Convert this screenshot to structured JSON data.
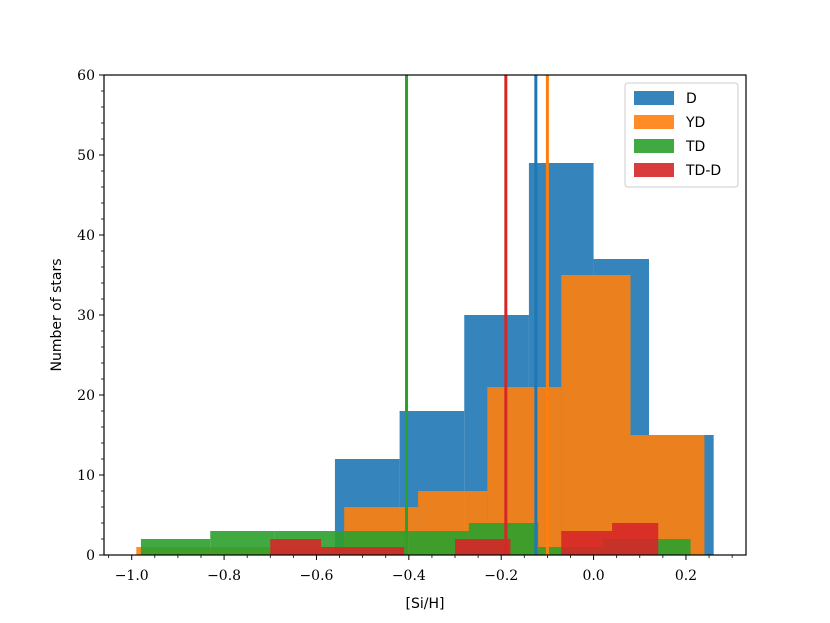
{
  "chart_data": {
    "type": "histogram",
    "xlabel": "[Si/H]",
    "ylabel": "Number of stars",
    "xlim": [
      -1.06,
      0.33
    ],
    "ylim": [
      0,
      60
    ],
    "xticks": [
      -1.0,
      -0.8,
      -0.6,
      -0.4,
      -0.2,
      0.0,
      0.2
    ],
    "xtick_labels": [
      "−1.0",
      "−0.8",
      "−0.6",
      "−0.4",
      "−0.2",
      "0.0",
      "0.2"
    ],
    "yticks": [
      0,
      10,
      20,
      30,
      40,
      50,
      60
    ],
    "ytick_labels": [
      "0",
      "10",
      "20",
      "30",
      "40",
      "50",
      "60"
    ],
    "grid": false,
    "legend_position": "top-right",
    "series": [
      {
        "name": "D",
        "color": "#1f77b4",
        "bin_edges": [
          -0.56,
          -0.42,
          -0.28,
          -0.14,
          0.0,
          0.12,
          0.26
        ],
        "counts": [
          12,
          18,
          30,
          49,
          37,
          15
        ],
        "mean": -0.125
      },
      {
        "name": "YD",
        "color": "#ff7f0e",
        "bin_edges": [
          -0.99,
          -0.54,
          -0.38,
          -0.23,
          -0.07,
          0.08,
          0.24
        ],
        "counts": [
          1,
          6,
          8,
          21,
          35,
          15
        ],
        "mean": -0.1
      },
      {
        "name": "TD",
        "color": "#2ca02c",
        "bin_edges": [
          -0.98,
          -0.83,
          -0.69,
          -0.54,
          -0.4,
          -0.27,
          -0.12,
          0.02,
          0.21
        ],
        "counts": [
          2,
          3,
          3,
          3,
          3,
          4,
          1,
          2
        ],
        "mean": -0.405
      },
      {
        "name": "TD-D",
        "color": "#d62728",
        "bin_edges": [
          -0.7,
          -0.59,
          -0.41,
          -0.3,
          -0.18,
          -0.07,
          0.04,
          0.14
        ],
        "counts": [
          2,
          1,
          0,
          2,
          0,
          3,
          4
        ],
        "mean": -0.19
      }
    ]
  }
}
